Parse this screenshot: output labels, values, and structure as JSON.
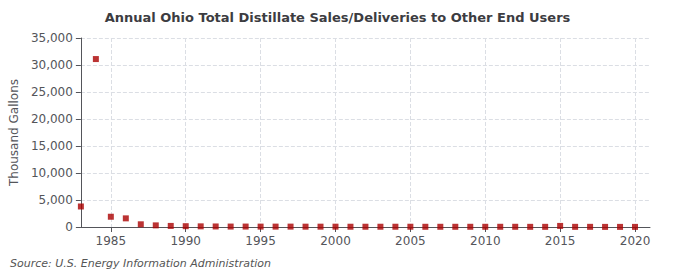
{
  "chart_data": {
    "type": "scatter",
    "title": "Annual Ohio Total Distillate Sales/Deliveries to Other End Users",
    "ylabel": "Thousand Gallons",
    "annotation": "Source: U.S. Energy Information Administration",
    "x": [
      1983,
      1984,
      1985,
      1986,
      1987,
      1988,
      1989,
      1990,
      1991,
      1992,
      1993,
      1994,
      1995,
      1996,
      1997,
      1998,
      1999,
      2000,
      2001,
      2002,
      2003,
      2004,
      2005,
      2006,
      2007,
      2008,
      2009,
      2010,
      2011,
      2012,
      2013,
      2014,
      2015,
      2016,
      2017,
      2018,
      2019,
      2020
    ],
    "values": [
      3800,
      31100,
      1900,
      1600,
      500,
      300,
      200,
      150,
      120,
      100,
      80,
      80,
      70,
      70,
      70,
      60,
      60,
      60,
      50,
      50,
      50,
      50,
      50,
      40,
      40,
      40,
      40,
      40,
      40,
      40,
      30,
      30,
      200,
      30,
      30,
      20,
      20,
      20
    ],
    "color": "#aa0000",
    "marker": "square",
    "xlim": [
      1983,
      2021
    ],
    "xticks": [
      1985,
      1990,
      1995,
      2000,
      2005,
      2010,
      2015,
      2020
    ],
    "ylim": [
      0,
      35000
    ],
    "yticks": [
      0,
      {
        "value": 5000,
        "label": "5,000"
      },
      {
        "value": 10000,
        "label": "10,000"
      },
      {
        "value": 15000,
        "label": "15,000"
      },
      {
        "value": 20000,
        "label": "20,000"
      },
      {
        "value": 25000,
        "label": "25,000"
      },
      {
        "value": 30000,
        "label": "30,000"
      },
      {
        "value": 35000,
        "label": "35,000"
      }
    ],
    "grid": true
  }
}
